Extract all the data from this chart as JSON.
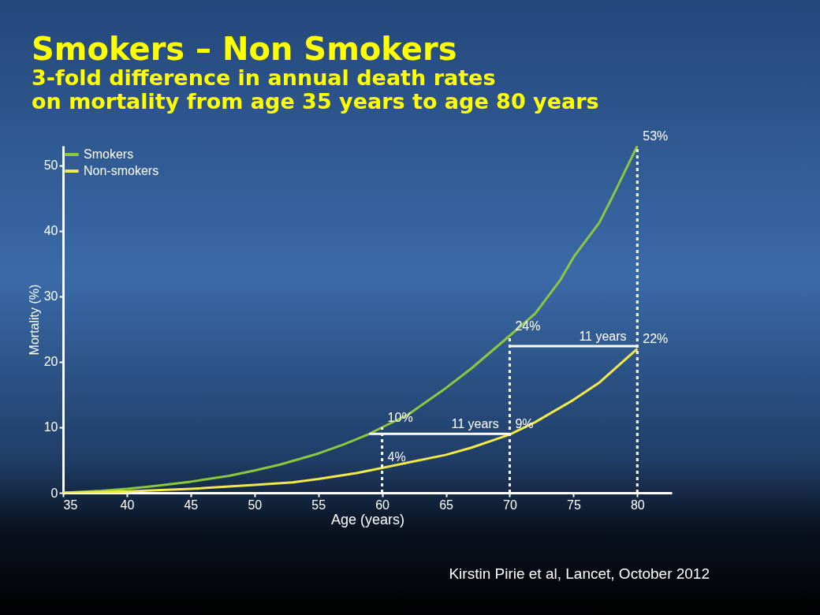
{
  "chart_data": {
    "type": "line",
    "title": "Smokers – Non Smokers",
    "subtitle": "3-fold difference in annual death rates\non mortality from age 35 years to age 80 years",
    "xlabel": "Age (years)",
    "ylabel": "Mortality (%)",
    "xlim": [
      35,
      82.7
    ],
    "xticks": [
      35,
      40,
      45,
      50,
      55,
      60,
      65,
      70,
      75,
      80
    ],
    "ylim": [
      0,
      53
    ],
    "yticks": [
      0,
      10,
      20,
      30,
      40,
      50
    ],
    "grid": false,
    "legend": "top left",
    "line_style": "solid",
    "marker": "none",
    "series": [
      {
        "name": "Smokers",
        "color": "#8dc63f",
        "x": [
          35,
          38,
          40,
          42,
          45,
          48,
          50,
          52,
          55,
          57,
          59,
          60,
          62,
          65,
          67,
          70,
          72,
          74,
          75,
          77,
          78,
          80
        ],
        "values": [
          0,
          0.3,
          0.6,
          1,
          1.7,
          2.6,
          3.4,
          4.3,
          6,
          7.4,
          9,
          10,
          11.9,
          16,
          19,
          24,
          27.4,
          32.6,
          36,
          41.2,
          45,
          53
        ]
      },
      {
        "name": "Non-smokers",
        "color": "#f2e84a",
        "x": [
          35,
          40,
          45,
          50,
          53,
          55,
          58,
          60,
          62,
          65,
          67,
          70,
          72,
          75,
          77,
          80
        ],
        "values": [
          0,
          0.2,
          0.6,
          1.2,
          1.6,
          2.1,
          3,
          3.8,
          4.6,
          5.8,
          6.9,
          8.9,
          10.8,
          14.2,
          16.8,
          22
        ]
      },
      {
        "color": "#ffffff",
        "line_style": "dashed",
        "x": [
          60,
          60
        ],
        "values": [
          0,
          10
        ]
      },
      {
        "color": "#ffffff",
        "line_style": "dashed",
        "x": [
          70,
          70
        ],
        "values": [
          0,
          24
        ]
      },
      {
        "color": "#ffffff",
        "line_style": "dashed",
        "x": [
          80,
          80
        ],
        "values": [
          0,
          53
        ]
      },
      {
        "color": "#ffffff",
        "x": [
          80,
          70
        ],
        "values": [
          22.4,
          22.4
        ]
      },
      {
        "color": "#ffffff",
        "x": [
          70,
          59
        ],
        "values": [
          9,
          9
        ]
      }
    ],
    "annotations": [
      {
        "text": "53%",
        "x": 80,
        "y": 53
      },
      {
        "text": "24%",
        "x": 70,
        "y": 24
      },
      {
        "text": "22%",
        "x": 80,
        "y": 22
      },
      {
        "text": "10%",
        "x": 60,
        "y": 10
      },
      {
        "text": "9%",
        "x": 70,
        "y": 9
      },
      {
        "text": "4%",
        "x": 60,
        "y": 4
      },
      {
        "text": "11 years",
        "x": 75,
        "y": 22.4
      },
      {
        "text": "11 years",
        "x": 65,
        "y": 9
      },
      "Kirstin Pirie et al, Lancet, October 2012"
    ]
  }
}
